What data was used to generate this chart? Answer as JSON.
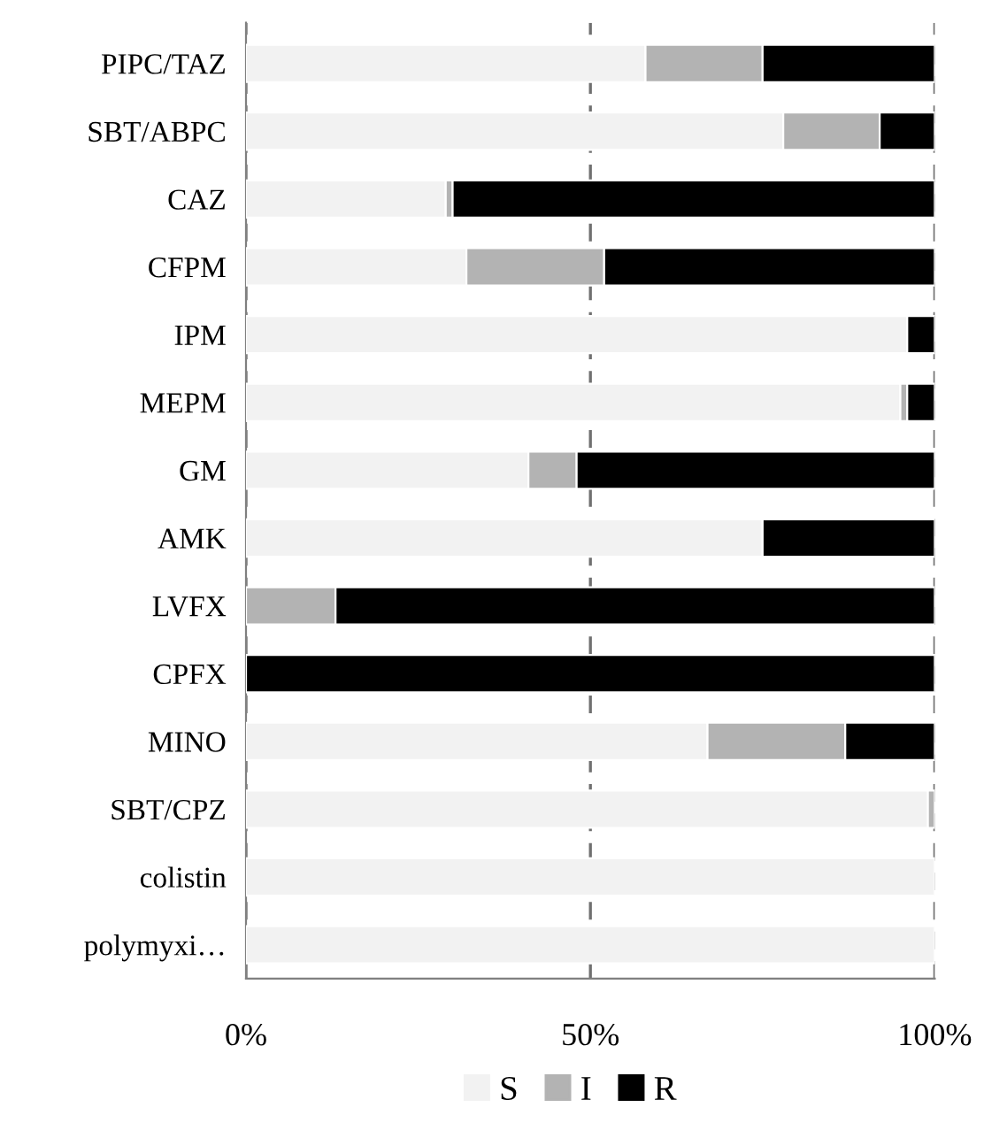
{
  "chart_data": {
    "type": "bar",
    "orientation": "horizontal",
    "stacked": true,
    "categories": [
      "PIPC/TAZ",
      "SBT/ABPC",
      "CAZ",
      "CFPM",
      "IPM",
      "MEPM",
      "GM",
      "AMK",
      "LVFX",
      "CPFX",
      "MINO",
      "SBT/CPZ",
      "colistin",
      "polymyxi…"
    ],
    "series": [
      {
        "name": "S",
        "color": "#f2f2f2",
        "values": [
          58,
          78,
          29,
          32,
          96,
          95,
          41,
          75,
          0,
          0,
          67,
          99,
          100,
          100
        ]
      },
      {
        "name": "I",
        "color": "#b3b3b3",
        "values": [
          17,
          14,
          1,
          20,
          0,
          1,
          7,
          0,
          13,
          0,
          20,
          1,
          0,
          0
        ]
      },
      {
        "name": "R",
        "color": "#000000",
        "values": [
          25,
          8,
          70,
          48,
          4,
          4,
          52,
          25,
          87,
          100,
          13,
          0,
          0,
          0
        ]
      }
    ],
    "xlim": [
      0,
      100
    ],
    "xticks": [
      {
        "value": 0,
        "label": "0%"
      },
      {
        "value": 50,
        "label": "50%"
      },
      {
        "value": 100,
        "label": "100%"
      }
    ],
    "grid": "x",
    "line_style": "dashed",
    "legend": "bottom"
  }
}
